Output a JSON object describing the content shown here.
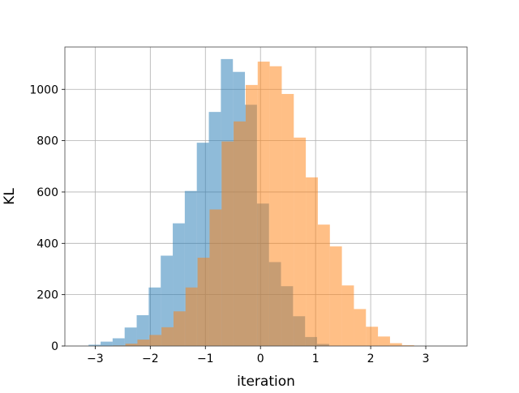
{
  "chart_data": {
    "type": "bar",
    "subtype": "overlapping-histogram",
    "title": "",
    "xlabel": "iteration",
    "ylabel": "KL",
    "xlim": [
      -3.55,
      3.75
    ],
    "ylim": [
      0,
      1165
    ],
    "grid": true,
    "legend": "none",
    "x_ticks": [
      -3,
      -2,
      -1,
      0,
      1,
      2,
      3
    ],
    "x_tick_labels": [
      "−3",
      "−2",
      "−1",
      "0",
      "1",
      "2",
      "3"
    ],
    "y_ticks": [
      0,
      200,
      400,
      600,
      800,
      1000
    ],
    "y_tick_labels": [
      "0",
      "200",
      "400",
      "600",
      "800",
      "1000"
    ],
    "series": [
      {
        "color": "#1f77b4",
        "opacity": 0.5,
        "bin_start": -3.12,
        "bin_width": 0.2183,
        "values": [
          5,
          17,
          30,
          72,
          120,
          228,
          352,
          478,
          604,
          792,
          912,
          1118,
          1068,
          940,
          555,
          327,
          233,
          116,
          35,
          8
        ]
      },
      {
        "color": "#ff7f0e",
        "opacity": 0.5,
        "bin_start": -2.67,
        "bin_width": 0.2183,
        "values": [
          2,
          9,
          25,
          43,
          73,
          135,
          228,
          344,
          532,
          797,
          875,
          1017,
          1108,
          1090,
          982,
          812,
          657,
          473,
          388,
          236,
          144,
          75,
          37,
          11,
          3
        ]
      }
    ]
  }
}
